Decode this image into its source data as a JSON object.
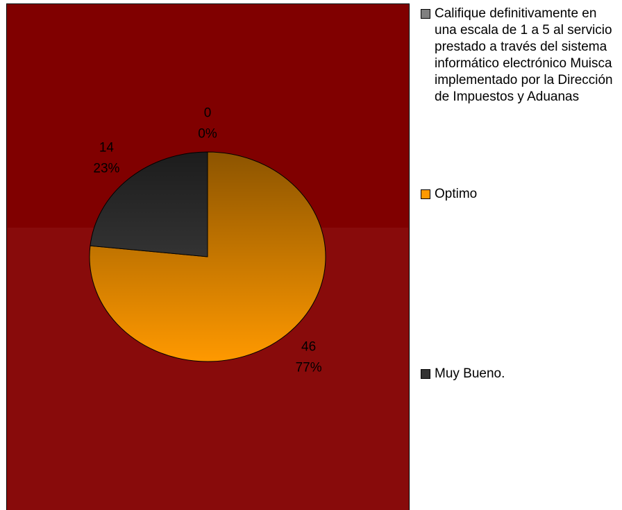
{
  "chart_data": {
    "type": "pie",
    "categories": [
      "Califique definitivamente en una escala de 1 a 5 al servicio prestado a través del sistema informático electrónico Muisca implementado por la Dirección de Impuestos y Aduanas",
      "Optimo",
      "Muy Bueno."
    ],
    "values": [
      0,
      46,
      14
    ],
    "percentages": [
      0,
      77,
      23
    ],
    "percentage_labels": [
      "0%",
      "77%",
      "23%"
    ],
    "colors": [
      "#808080",
      "#ff9900",
      "#333333"
    ]
  }
}
